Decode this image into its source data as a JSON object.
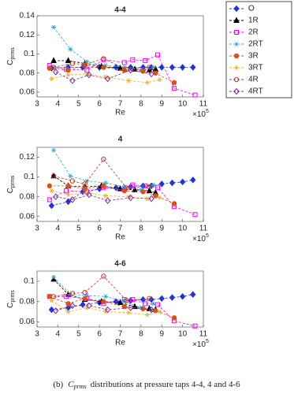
{
  "legend": {
    "position": "upper-right",
    "items": [
      {
        "name": "O",
        "color": "#2233dd",
        "marker": "diamond-filled"
      },
      {
        "name": "1R",
        "color": "#000000",
        "marker": "triangle-filled"
      },
      {
        "name": "2R",
        "color": "#ff00ff",
        "marker": "square-open"
      },
      {
        "name": "2RT",
        "color": "#2aa8d8",
        "marker": "star"
      },
      {
        "name": "3R",
        "color": "#d95319",
        "marker": "circle-filled"
      },
      {
        "name": "3RT",
        "color": "#edb120",
        "marker": "star"
      },
      {
        "name": "4R",
        "color": "#c0392b",
        "marker": "circle-open"
      },
      {
        "name": "4RT",
        "color": "#7e2f8e",
        "marker": "diamond-open"
      }
    ]
  },
  "chart_data": [
    {
      "type": "line",
      "title": "4-4",
      "xlabel": "Re",
      "x_multiplier": "×10",
      "x_multiplier_exp": "5",
      "ylabel": "C",
      "ylabel_sub": "prms",
      "xlim": [
        3,
        11
      ],
      "xticks": [
        3,
        4,
        5,
        6,
        7,
        8,
        9,
        10,
        11
      ],
      "ylim": [
        0.055,
        0.14
      ],
      "yticks": [
        0.06,
        0.08,
        0.1,
        0.12,
        0.14
      ],
      "series": [
        {
          "x": [
            3.7,
            4.5,
            5.2,
            6.0,
            6.8,
            7.5,
            8.1,
            8.5,
            9.0,
            9.5,
            10.0,
            10.5
          ],
          "values": [
            0.085,
            0.086,
            0.086,
            0.086,
            0.086,
            0.086,
            0.086,
            0.086,
            0.086,
            0.086,
            0.086,
            0.086
          ]
        },
        {
          "x": [
            3.8,
            4.5,
            5.3,
            6.1,
            7.0,
            7.7,
            8.4,
            8.7
          ],
          "values": [
            0.093,
            0.093,
            0.09,
            0.087,
            0.085,
            0.084,
            0.083,
            0.084
          ]
        },
        {
          "x": [
            3.6,
            4.4,
            5.4,
            6.2,
            7.2,
            7.6,
            8.2,
            8.8,
            9.6,
            10.6
          ],
          "values": [
            0.088,
            0.084,
            0.083,
            0.094,
            0.091,
            0.094,
            0.093,
            0.099,
            0.064,
            0.057
          ]
        },
        {
          "x": [
            3.8,
            4.6,
            5.4,
            6.3,
            7.2,
            8.0,
            8.6
          ],
          "values": [
            0.128,
            0.105,
            0.092,
            0.088,
            0.086,
            0.083,
            0.086
          ]
        },
        {
          "x": [
            3.6,
            4.5,
            5.3,
            6.2,
            7.2,
            8.1,
            8.7,
            9.6
          ],
          "values": [
            0.085,
            0.083,
            0.088,
            0.086,
            0.083,
            0.082,
            0.08,
            0.07
          ]
        },
        {
          "x": [
            3.7,
            4.5,
            5.4,
            6.3,
            7.4,
            8.3,
            8.9
          ],
          "values": [
            0.074,
            0.078,
            0.079,
            0.076,
            0.072,
            0.07,
            0.073
          ]
        },
        {
          "x": [
            3.8,
            4.7,
            5.3,
            6.2,
            7.3,
            8.4
          ],
          "values": [
            0.086,
            0.09,
            0.089,
            0.095,
            0.084,
            0.086
          ]
        },
        {
          "x": [
            3.9,
            4.7,
            5.5,
            6.4,
            7.5,
            8.5
          ],
          "values": [
            0.081,
            0.072,
            0.078,
            0.074,
            0.083,
            0.079
          ]
        }
      ]
    },
    {
      "type": "line",
      "title": "4",
      "xlabel": "Re",
      "x_multiplier": "×10",
      "x_multiplier_exp": "5",
      "ylabel": "C",
      "ylabel_sub": "prms",
      "xlim": [
        3,
        11
      ],
      "xticks": [
        3,
        4,
        5,
        6,
        7,
        8,
        9,
        10,
        11
      ],
      "ylim": [
        0.055,
        0.13
      ],
      "yticks": [
        0.06,
        0.08,
        0.1,
        0.12
      ],
      "series": [
        {
          "x": [
            3.7,
            4.5,
            5.2,
            6.0,
            6.8,
            7.5,
            8.1,
            8.5,
            9.0,
            9.5,
            10.0,
            10.5
          ],
          "values": [
            0.071,
            0.075,
            0.085,
            0.088,
            0.089,
            0.09,
            0.091,
            0.091,
            0.093,
            0.094,
            0.095,
            0.097
          ]
        },
        {
          "x": [
            3.8,
            4.5,
            5.3,
            6.1,
            7.0,
            7.7,
            8.4,
            8.7
          ],
          "values": [
            0.101,
            0.091,
            0.09,
            0.091,
            0.088,
            0.087,
            0.086,
            0.084
          ]
        },
        {
          "x": [
            3.6,
            4.4,
            5.4,
            6.2,
            7.2,
            7.6,
            8.2,
            8.8,
            9.6,
            10.6
          ],
          "values": [
            0.077,
            0.086,
            0.085,
            0.089,
            0.087,
            0.092,
            0.091,
            0.089,
            0.07,
            0.062
          ]
        },
        {
          "x": [
            3.8,
            4.6,
            5.4,
            6.3,
            7.2,
            8.0,
            8.6
          ],
          "values": [
            0.127,
            0.101,
            0.096,
            0.094,
            0.09,
            0.087,
            0.092
          ]
        },
        {
          "x": [
            3.6,
            4.5,
            5.3,
            6.2,
            7.2,
            8.1,
            8.7,
            9.6
          ],
          "values": [
            0.091,
            0.091,
            0.088,
            0.091,
            0.086,
            0.085,
            0.081,
            0.073
          ]
        },
        {
          "x": [
            3.7,
            4.5,
            5.4,
            6.3,
            7.4,
            8.3,
            8.9
          ],
          "values": [
            0.086,
            0.082,
            0.084,
            0.081,
            0.08,
            0.078,
            0.079
          ]
        },
        {
          "x": [
            3.8,
            4.7,
            5.3,
            6.2,
            7.3,
            8.4
          ],
          "values": [
            0.101,
            0.096,
            0.093,
            0.118,
            0.089,
            0.09
          ]
        },
        {
          "x": [
            3.9,
            4.7,
            5.5,
            6.4,
            7.5,
            8.5
          ],
          "values": [
            0.08,
            0.077,
            0.082,
            0.076,
            0.079,
            0.078
          ]
        }
      ]
    },
    {
      "type": "line",
      "title": "4-6",
      "xlabel": "Re",
      "x_multiplier": "×10",
      "x_multiplier_exp": "5",
      "ylabel": "C",
      "ylabel_sub": "prms",
      "xlim": [
        3,
        11
      ],
      "xticks": [
        3,
        4,
        5,
        6,
        7,
        8,
        9,
        10,
        11
      ],
      "ylim": [
        0.055,
        0.11
      ],
      "yticks": [
        0.06,
        0.08,
        0.1
      ],
      "series": [
        {
          "x": [
            3.7,
            4.5,
            5.2,
            6.0,
            6.8,
            7.5,
            8.1,
            8.5,
            9.0,
            9.5,
            10.0,
            10.5
          ],
          "values": [
            0.072,
            0.074,
            0.077,
            0.079,
            0.08,
            0.081,
            0.082,
            0.082,
            0.083,
            0.084,
            0.085,
            0.087
          ]
        },
        {
          "x": [
            3.8,
            4.5,
            5.3,
            6.1,
            7.0,
            7.7,
            8.4,
            8.7
          ],
          "values": [
            0.102,
            0.087,
            0.082,
            0.08,
            0.079,
            0.075,
            0.073,
            0.072
          ]
        },
        {
          "x": [
            3.6,
            4.4,
            5.4,
            6.2,
            7.2,
            7.6,
            8.2,
            8.8,
            9.6,
            10.6
          ],
          "values": [
            0.085,
            0.085,
            0.083,
            0.078,
            0.082,
            0.082,
            0.078,
            0.077,
            0.061,
            0.056
          ]
        },
        {
          "x": [
            3.8,
            4.6,
            5.4,
            6.3,
            7.2,
            8.0,
            8.6
          ],
          "values": [
            0.104,
            0.087,
            0.086,
            0.085,
            0.08,
            0.074,
            0.078
          ]
        },
        {
          "x": [
            3.6,
            4.5,
            5.3,
            6.2,
            7.2,
            8.1,
            8.7,
            9.6
          ],
          "values": [
            0.085,
            0.078,
            0.083,
            0.08,
            0.075,
            0.073,
            0.071,
            0.064
          ]
        },
        {
          "x": [
            3.7,
            4.5,
            5.4,
            6.3,
            7.4,
            8.3,
            8.9
          ],
          "values": [
            0.081,
            0.07,
            0.074,
            0.07,
            0.069,
            0.067,
            0.07
          ]
        },
        {
          "x": [
            3.8,
            4.7,
            5.3,
            6.2,
            7.3,
            8.4
          ],
          "values": [
            0.085,
            0.088,
            0.089,
            0.105,
            0.081,
            0.083
          ]
        },
        {
          "x": [
            3.9,
            4.7,
            5.5,
            6.4,
            7.5,
            8.5
          ],
          "values": [
            0.071,
            0.076,
            0.076,
            0.072,
            0.074,
            0.072
          ]
        }
      ]
    }
  ],
  "caption": {
    "prefix": "(b)",
    "symbol": "C",
    "subscript": "prms",
    "text": "distributions at pressure taps 4-4, 4 and 4-6"
  }
}
